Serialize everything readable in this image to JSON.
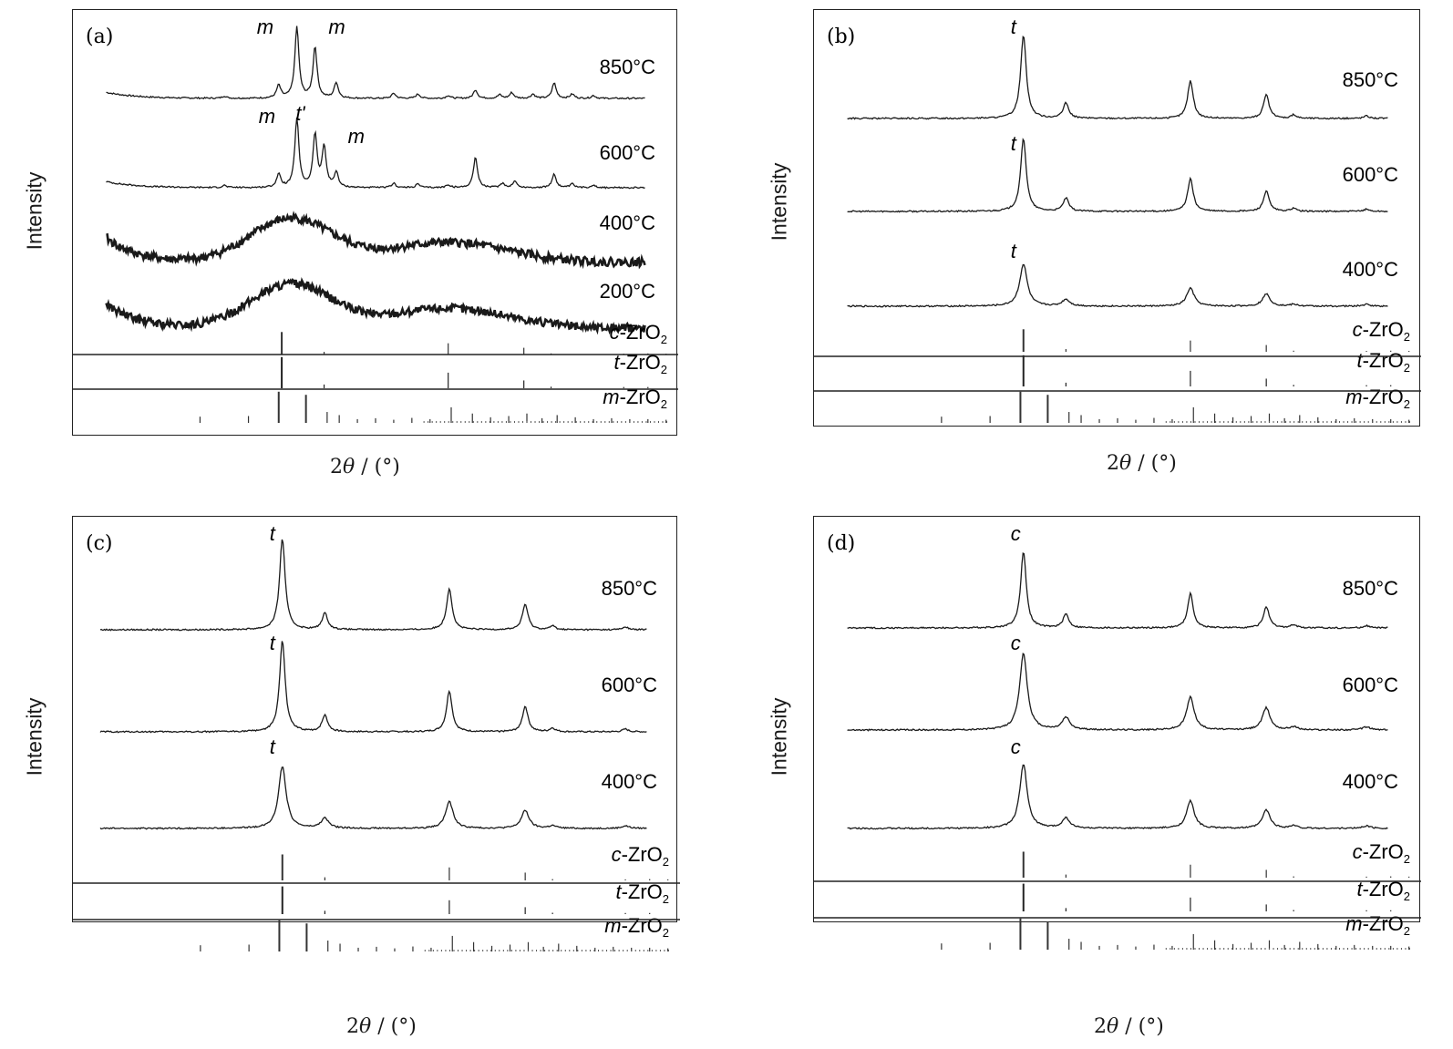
{
  "chart_data": [
    {
      "type": "line",
      "panel_label": "(a)",
      "ylabel": "Intensity",
      "xlabel_pre": "2",
      "xlabel_theta": "θ",
      "xlabel_post": " / (°)",
      "series": [
        {
          "name": "850°C",
          "pattern": "m",
          "peaks": [
            {
              "label": "m",
              "at": 0.34
            },
            {
              "label": "m",
              "at": 0.4
            }
          ]
        },
        {
          "name": "600°C",
          "pattern": "mt",
          "peaks": [
            {
              "label": "m",
              "at": 0.34
            },
            {
              "label": "t'",
              "at": 0.37
            },
            {
              "label": "m",
              "at": 0.415
            }
          ]
        },
        {
          "name": "400°C",
          "pattern": "amorphous",
          "peaks": []
        },
        {
          "name": "200°C",
          "pattern": "amorphous",
          "peaks": []
        }
      ],
      "references": [
        {
          "phase_prefix": "c",
          "phase_formula": "-ZrO",
          "subscript": "2"
        },
        {
          "phase_prefix": "t",
          "phase_formula": "-ZrO",
          "subscript": "2"
        },
        {
          "phase_prefix": "m",
          "phase_formula": "-ZrO",
          "subscript": "2"
        }
      ],
      "grid": false
    },
    {
      "type": "line",
      "panel_label": "(b)",
      "ylabel": "Intensity",
      "xlabel_pre": "2",
      "xlabel_theta": "θ",
      "xlabel_post": " / (°)",
      "series": [
        {
          "name": "850°C",
          "pattern": "tc",
          "peaks": [
            {
              "label": "t",
              "at": 0.34
            }
          ]
        },
        {
          "name": "600°C",
          "pattern": "tc",
          "peaks": [
            {
              "label": "t",
              "at": 0.34
            }
          ]
        },
        {
          "name": "400°C",
          "pattern": "tc_broad",
          "peaks": [
            {
              "label": "t",
              "at": 0.34
            }
          ]
        }
      ],
      "references": [
        {
          "phase_prefix": "c",
          "phase_formula": "-ZrO",
          "subscript": "2"
        },
        {
          "phase_prefix": "t",
          "phase_formula": "-ZrO",
          "subscript": "2"
        },
        {
          "phase_prefix": "m",
          "phase_formula": "-ZrO",
          "subscript": "2"
        }
      ],
      "grid": false
    },
    {
      "type": "line",
      "panel_label": "(c)",
      "ylabel": "Intensity",
      "xlabel_pre": "2",
      "xlabel_theta": "θ",
      "xlabel_post": " / (°)",
      "series": [
        {
          "name": "850°C",
          "pattern": "tc",
          "peaks": [
            {
              "label": "t",
              "at": 0.34
            }
          ]
        },
        {
          "name": "600°C",
          "pattern": "tc",
          "peaks": [
            {
              "label": "t",
              "at": 0.34
            }
          ]
        },
        {
          "name": "400°C",
          "pattern": "tc_broad",
          "peaks": [
            {
              "label": "t",
              "at": 0.34
            }
          ]
        }
      ],
      "references": [
        {
          "phase_prefix": "c",
          "phase_formula": "-ZrO",
          "subscript": "2"
        },
        {
          "phase_prefix": "t",
          "phase_formula": "-ZrO",
          "subscript": "2"
        },
        {
          "phase_prefix": "m",
          "phase_formula": "-ZrO",
          "subscript": "2"
        }
      ],
      "grid": false
    },
    {
      "type": "line",
      "panel_label": "(d)",
      "ylabel": "Intensity",
      "xlabel_pre": "2",
      "xlabel_theta": "θ",
      "xlabel_post": " / (°)",
      "series": [
        {
          "name": "850°C",
          "pattern": "tc",
          "peaks": [
            {
              "label": "c",
              "at": 0.34
            }
          ]
        },
        {
          "name": "600°C",
          "pattern": "tc_broad",
          "peaks": [
            {
              "label": "c",
              "at": 0.34
            }
          ]
        },
        {
          "name": "400°C",
          "pattern": "tc_broad",
          "peaks": [
            {
              "label": "c",
              "at": 0.34
            }
          ]
        }
      ],
      "references": [
        {
          "phase_prefix": "c",
          "phase_formula": "-ZrO",
          "subscript": "2"
        },
        {
          "phase_prefix": "t",
          "phase_formula": "-ZrO",
          "subscript": "2"
        },
        {
          "phase_prefix": "m",
          "phase_formula": "-ZrO",
          "subscript": "2"
        }
      ],
      "grid": false
    }
  ]
}
